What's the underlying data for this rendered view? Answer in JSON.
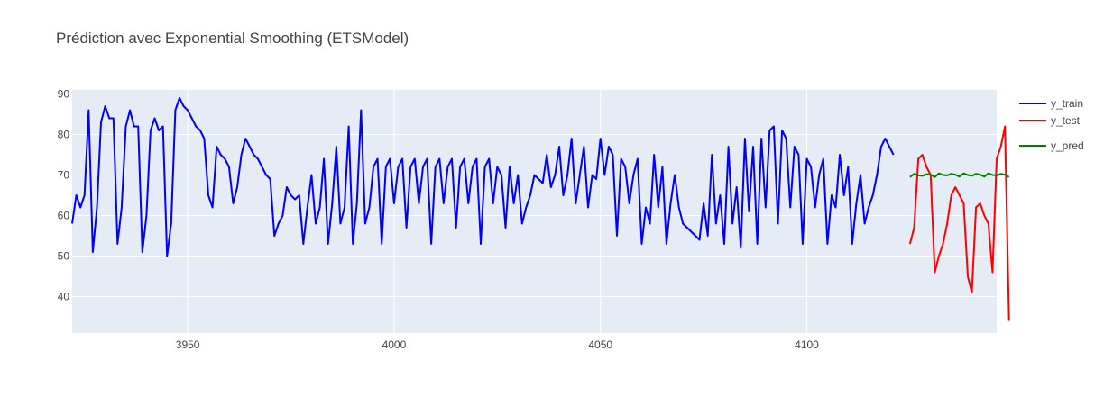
{
  "chart_data": {
    "type": "line",
    "title": "Prédiction avec Exponential Smoothing (ETSModel)",
    "xlabel": "",
    "ylabel": "",
    "xlim": [
      3922,
      4146
    ],
    "ylim": [
      31,
      91
    ],
    "x_ticks": [
      3950,
      4000,
      4050,
      4100
    ],
    "y_ticks": [
      40,
      50,
      60,
      70,
      80,
      90
    ],
    "grid": true,
    "legend_position": "top-right",
    "series": [
      {
        "name": "y_train",
        "color": "#0000ff",
        "x_start": 3922,
        "values": [
          58,
          65,
          62,
          65,
          86,
          51,
          62,
          83,
          87,
          84,
          84,
          53,
          62,
          82,
          86,
          82,
          82,
          51,
          60,
          81,
          84,
          81,
          82,
          50,
          58,
          86,
          89,
          87,
          86,
          84,
          82,
          81,
          79,
          65,
          62,
          77,
          75,
          74,
          72,
          63,
          67,
          75,
          79,
          77,
          75,
          74,
          72,
          70,
          69,
          55,
          58,
          60,
          67,
          65,
          64,
          65,
          53,
          62,
          70,
          58,
          62,
          74,
          53,
          63,
          77,
          58,
          62,
          82,
          53,
          63,
          86,
          58,
          62,
          72,
          74,
          53,
          72,
          74,
          63,
          72,
          74,
          57,
          72,
          74,
          63,
          72,
          74,
          53,
          72,
          74,
          63,
          72,
          74,
          57,
          72,
          74,
          63,
          72,
          74,
          53,
          72,
          74,
          63,
          72,
          70,
          57,
          72,
          63,
          70,
          58,
          62,
          65,
          70,
          69,
          68,
          75,
          67,
          70,
          77,
          65,
          70,
          79,
          63,
          70,
          77,
          62,
          70,
          69,
          79,
          70,
          77,
          75,
          55,
          74,
          72,
          63,
          70,
          74,
          53,
          62,
          58,
          75,
          62,
          72,
          53,
          63,
          70,
          62,
          58,
          57,
          56,
          55,
          54,
          63,
          55,
          75,
          58,
          65,
          53,
          77,
          58,
          67,
          52,
          79,
          61,
          77,
          53,
          79,
          62,
          81,
          82,
          58,
          81,
          79,
          62,
          77,
          75,
          53,
          74,
          72,
          62,
          70,
          74,
          53,
          65,
          62,
          75,
          65,
          72,
          53,
          63,
          70,
          58,
          62,
          65,
          70,
          77,
          79,
          77,
          75
        ]
      },
      {
        "name": "y_test",
        "color": "#ff0000",
        "x_start": 4125,
        "values": [
          53,
          57,
          74,
          75,
          72,
          70,
          46,
          50,
          53,
          58,
          65,
          67,
          65,
          63,
          45,
          41,
          62,
          63,
          60,
          58,
          46,
          74,
          77,
          82,
          34
        ]
      },
      {
        "name": "y_pred",
        "color": "#008000",
        "x_start": 4125,
        "values": [
          69.5,
          70.3,
          69.9,
          69.8,
          70.2,
          70.1,
          69.5,
          70.4,
          70.0,
          69.9,
          70.3,
          70.1,
          69.6,
          70.4,
          70.0,
          69.8,
          70.3,
          70.1,
          69.6,
          70.4,
          70.0,
          69.9,
          70.3,
          70.1,
          69.5
        ]
      }
    ]
  }
}
